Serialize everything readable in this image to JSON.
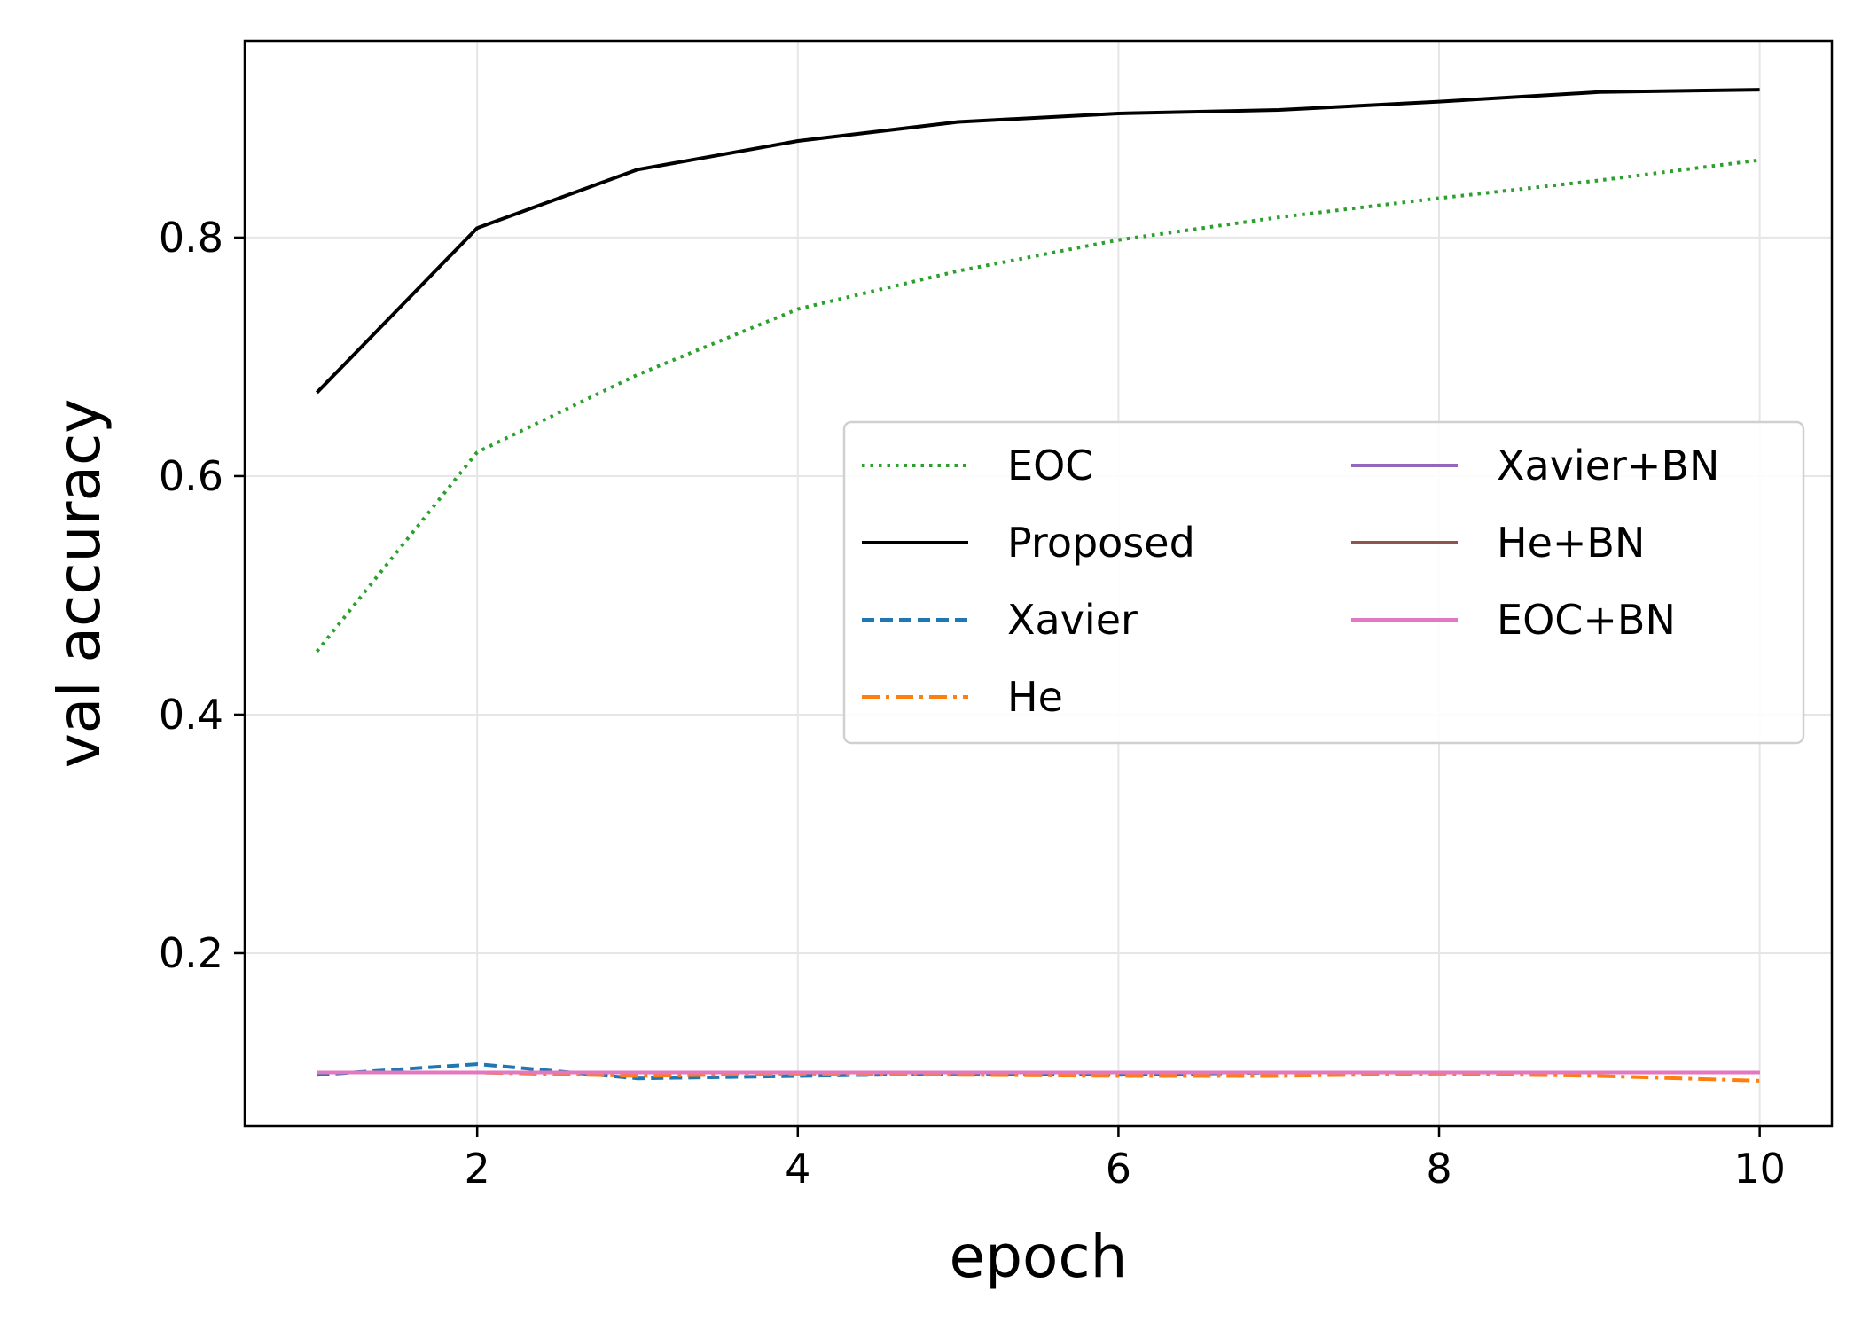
{
  "chart_data": {
    "type": "line",
    "title": "",
    "xlabel": "epoch",
    "ylabel": "val accuracy",
    "xlim": [
      0.55,
      10.45
    ],
    "ylim": [
      0.055,
      0.965
    ],
    "xticks": [
      2,
      4,
      6,
      8,
      10
    ],
    "yticks": [
      0.2,
      0.4,
      0.6,
      0.8
    ],
    "xtick_labels": [
      "2",
      "4",
      "6",
      "8",
      "10"
    ],
    "ytick_labels": [
      "0.2",
      "0.4",
      "0.6",
      "0.8"
    ],
    "grid": true,
    "legend_position": "center-right",
    "x": [
      1,
      2,
      3,
      4,
      5,
      6,
      7,
      8,
      9,
      10
    ],
    "series": [
      {
        "name": "EOC",
        "color": "#2ca02c",
        "style": "dotted",
        "values": [
          0.453,
          0.62,
          0.685,
          0.74,
          0.772,
          0.798,
          0.817,
          0.833,
          0.848,
          0.865
        ]
      },
      {
        "name": "Proposed",
        "color": "#000000",
        "style": "solid",
        "values": [
          0.67,
          0.808,
          0.857,
          0.881,
          0.897,
          0.904,
          0.907,
          0.914,
          0.922,
          0.924
        ]
      },
      {
        "name": "Xavier",
        "color": "#1f77b4",
        "style": "dashed",
        "values": [
          0.098,
          0.107,
          0.095,
          0.097,
          0.099,
          0.098,
          0.1,
          0.1,
          0.1,
          0.1
        ]
      },
      {
        "name": "He",
        "color": "#ff7f0e",
        "style": "dashdot",
        "values": [
          0.1,
          0.1,
          0.097,
          0.099,
          0.098,
          0.097,
          0.097,
          0.099,
          0.097,
          0.093
        ]
      },
      {
        "name": "Xavier+BN",
        "color": "#9467bd",
        "style": "solid",
        "values": [
          0.1,
          0.1,
          0.1,
          0.1,
          0.1,
          0.1,
          0.1,
          0.1,
          0.1,
          0.1
        ]
      },
      {
        "name": "He+BN",
        "color": "#8c564b",
        "style": "solid",
        "values": [
          0.1,
          0.1,
          0.1,
          0.1,
          0.1,
          0.1,
          0.1,
          0.1,
          0.1,
          0.1
        ]
      },
      {
        "name": "EOC+BN",
        "color": "#e377c2",
        "style": "solid",
        "values": [
          0.1,
          0.1,
          0.1,
          0.1,
          0.1,
          0.1,
          0.1,
          0.1,
          0.1,
          0.1
        ]
      }
    ]
  }
}
